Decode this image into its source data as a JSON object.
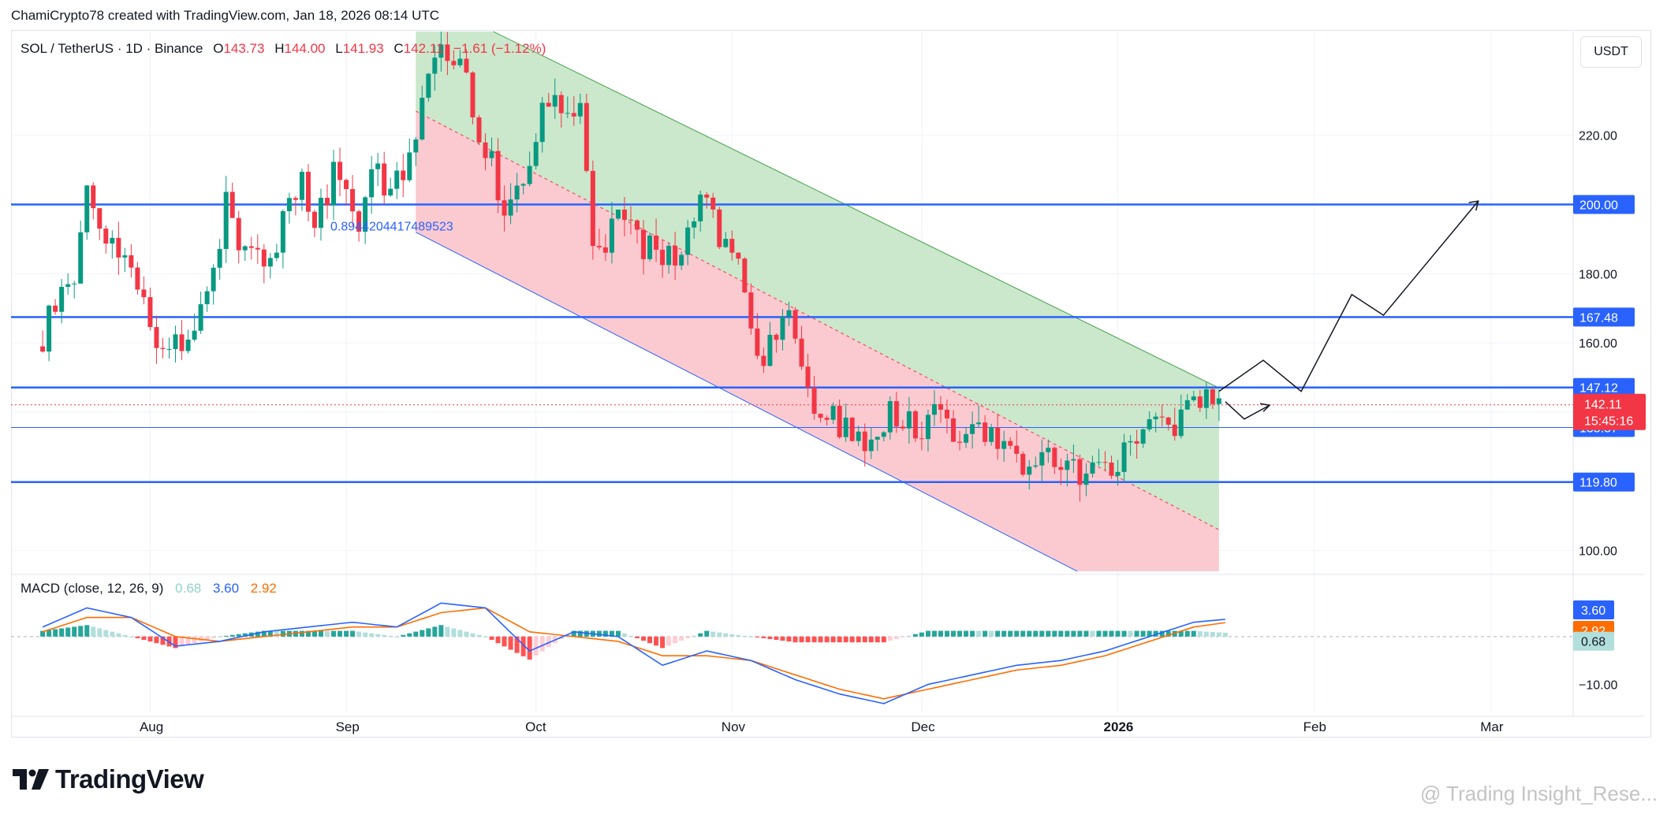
{
  "header": {
    "attribution": "ChamiCrypto78 created with TradingView.com, Jan 18, 2026 08:14 UTC"
  },
  "legend": {
    "symbol": "SOL / TetherUS · 1D · Binance",
    "open_label": "O",
    "open": "143.73",
    "high_label": "H",
    "high": "144.00",
    "low_label": "L",
    "low": "141.93",
    "close_label": "C",
    "close": "142.11",
    "change": "−1.61 (−1.12%)"
  },
  "currency_button": "USDT",
  "annotation_text": "0.8944204417489523",
  "macd_legend": {
    "label": "MACD (close, 12, 26, 9)",
    "hist": "0.68",
    "macd": "3.60",
    "signal": "2.92"
  },
  "footer": {
    "brand": "TradingView",
    "watermark": "@ Trading Insight_Rese..."
  },
  "colors": {
    "up": "#089981",
    "down": "#f23645",
    "level": "#2962ff",
    "channel_green": "#c8e6c9",
    "channel_red": "#fbc7cd",
    "macd": "#2962ff",
    "signal": "#ff6d00"
  },
  "chart_data": [
    {
      "type": "candlestick",
      "title": "SOL / TetherUS · 1D · Binance",
      "ylim": [
        94,
        250
      ],
      "y_ticks": [
        100,
        120,
        140,
        160,
        180,
        200,
        220
      ],
      "y_tick_labels": [
        "100.00",
        "",
        "",
        "160.00",
        "180.00",
        "",
        "220.00"
      ],
      "x_ticks": [
        "Aug",
        "Sep",
        "Oct",
        "Nov",
        "Dec",
        "2026",
        "Feb",
        "Mar"
      ],
      "x_tick_dates": [
        "2025-08-01",
        "2025-09-01",
        "2025-10-01",
        "2025-11-01",
        "2025-12-01",
        "2026-01-01",
        "2026-02-01",
        "2026-03-01"
      ],
      "horizontal_levels": [
        200.0,
        167.48,
        147.12,
        135.57,
        119.8
      ],
      "level_labels": [
        "200.00",
        "167.48",
        "147.12",
        "135.57",
        "119.80"
      ],
      "last_price": "142.11",
      "countdown": "15:45:16",
      "close_series": {
        "start_date": "2025-07-15",
        "end_date": "2026-01-18",
        "points": [
          [
            "2025-07-15",
            162
          ],
          [
            "2025-07-17",
            172
          ],
          [
            "2025-07-20",
            180
          ],
          [
            "2025-07-22",
            205
          ],
          [
            "2025-07-24",
            190
          ],
          [
            "2025-07-27",
            184
          ],
          [
            "2025-07-30",
            175
          ],
          [
            "2025-08-02",
            162
          ],
          [
            "2025-08-04",
            158
          ],
          [
            "2025-08-06",
            162
          ],
          [
            "2025-08-09",
            170
          ],
          [
            "2025-08-11",
            180
          ],
          [
            "2025-08-13",
            200
          ],
          [
            "2025-08-15",
            190
          ],
          [
            "2025-08-18",
            183
          ],
          [
            "2025-08-20",
            181
          ],
          [
            "2025-08-22",
            194
          ],
          [
            "2025-08-25",
            205
          ],
          [
            "2025-08-27",
            195
          ],
          [
            "2025-08-30",
            208
          ],
          [
            "2025-09-01",
            205
          ],
          [
            "2025-09-03",
            196
          ],
          [
            "2025-09-05",
            210
          ],
          [
            "2025-09-08",
            205
          ],
          [
            "2025-09-10",
            207
          ],
          [
            "2025-09-12",
            220
          ],
          [
            "2025-09-14",
            236
          ],
          [
            "2025-09-16",
            243
          ],
          [
            "2025-09-18",
            242
          ],
          [
            "2025-09-20",
            237
          ],
          [
            "2025-09-22",
            220
          ],
          [
            "2025-09-24",
            212
          ],
          [
            "2025-09-26",
            197
          ],
          [
            "2025-09-28",
            206
          ],
          [
            "2025-09-30",
            210
          ],
          [
            "2025-10-02",
            228
          ],
          [
            "2025-10-04",
            233
          ],
          [
            "2025-10-06",
            228
          ],
          [
            "2025-10-08",
            225
          ],
          [
            "2025-10-10",
            190
          ],
          [
            "2025-10-12",
            185
          ],
          [
            "2025-10-14",
            200
          ],
          [
            "2025-10-16",
            196
          ],
          [
            "2025-10-18",
            186
          ],
          [
            "2025-10-20",
            189
          ],
          [
            "2025-10-22",
            184
          ],
          [
            "2025-10-24",
            188
          ],
          [
            "2025-10-27",
            200
          ],
          [
            "2025-10-29",
            197
          ],
          [
            "2025-10-31",
            187
          ],
          [
            "2025-11-02",
            186
          ],
          [
            "2025-11-04",
            162
          ],
          [
            "2025-11-06",
            156
          ],
          [
            "2025-11-08",
            162
          ],
          [
            "2025-11-10",
            166
          ],
          [
            "2025-11-12",
            156
          ],
          [
            "2025-11-14",
            142
          ],
          [
            "2025-11-16",
            140
          ],
          [
            "2025-11-18",
            137
          ],
          [
            "2025-11-20",
            135
          ],
          [
            "2025-11-22",
            130
          ],
          [
            "2025-11-24",
            136
          ],
          [
            "2025-11-26",
            141
          ],
          [
            "2025-11-28",
            139
          ],
          [
            "2025-11-30",
            133
          ],
          [
            "2025-12-02",
            139
          ],
          [
            "2025-12-04",
            141
          ],
          [
            "2025-12-06",
            133
          ],
          [
            "2025-12-08",
            133
          ],
          [
            "2025-12-10",
            137
          ],
          [
            "2025-12-12",
            133
          ],
          [
            "2025-12-14",
            131
          ],
          [
            "2025-12-16",
            126
          ],
          [
            "2025-12-18",
            123
          ],
          [
            "2025-12-20",
            126
          ],
          [
            "2025-12-22",
            126
          ],
          [
            "2025-12-24",
            122
          ],
          [
            "2025-12-26",
            123
          ],
          [
            "2025-12-28",
            124
          ],
          [
            "2025-12-30",
            125
          ],
          [
            "2026-01-01",
            127
          ],
          [
            "2026-01-03",
            132
          ],
          [
            "2026-01-05",
            136
          ],
          [
            "2026-01-07",
            140
          ],
          [
            "2026-01-09",
            138
          ],
          [
            "2026-01-11",
            137
          ],
          [
            "2026-01-13",
            144
          ],
          [
            "2026-01-15",
            146
          ],
          [
            "2026-01-17",
            143.73
          ],
          [
            "2026-01-18",
            142.11
          ]
        ]
      },
      "channel": {
        "upper_start": [
          "2025-09-12",
          261
        ],
        "upper_end": [
          "2026-01-17",
          147
        ],
        "mid_start": [
          "2025-09-12",
          227
        ],
        "mid_end": [
          "2026-01-17",
          106
        ],
        "lower_start": [
          "2025-09-12",
          192
        ],
        "lower_end": [
          "2026-01-17",
          73
        ]
      },
      "projection_path": [
        [
          "2026-01-17",
          146
        ],
        [
          "2026-01-24",
          155
        ],
        [
          "2026-01-30",
          146
        ],
        [
          "2026-02-07",
          174
        ],
        [
          "2026-02-12",
          168
        ],
        [
          "2026-02-27",
          201
        ]
      ],
      "projection_path_alt": [
        [
          "2026-01-18",
          143
        ],
        [
          "2026-01-21",
          138
        ],
        [
          "2026-01-25",
          142
        ]
      ]
    },
    {
      "type": "macd",
      "title": "MACD (close, 12, 26, 9)",
      "ylim": [
        -16,
        12
      ],
      "y_ticks": [
        -10
      ],
      "y_tick_labels": [
        "−10.00"
      ],
      "last_values": {
        "macd": 3.6,
        "signal": 2.92,
        "hist": 0.68
      },
      "macd_points": [
        [
          "2025-07-15",
          2
        ],
        [
          "2025-07-22",
          6
        ],
        [
          "2025-07-29",
          4
        ],
        [
          "2025-08-05",
          -2
        ],
        [
          "2025-08-12",
          -1
        ],
        [
          "2025-08-19",
          1
        ],
        [
          "2025-08-26",
          2
        ],
        [
          "2025-09-02",
          3
        ],
        [
          "2025-09-09",
          2
        ],
        [
          "2025-09-16",
          7
        ],
        [
          "2025-09-23",
          6
        ],
        [
          "2025-09-30",
          -3
        ],
        [
          "2025-10-07",
          1
        ],
        [
          "2025-10-14",
          0
        ],
        [
          "2025-10-21",
          -6
        ],
        [
          "2025-10-28",
          -3
        ],
        [
          "2025-11-04",
          -5
        ],
        [
          "2025-11-11",
          -9
        ],
        [
          "2025-11-18",
          -12
        ],
        [
          "2025-11-25",
          -14
        ],
        [
          "2025-12-02",
          -10
        ],
        [
          "2025-12-09",
          -8
        ],
        [
          "2025-12-16",
          -6
        ],
        [
          "2025-12-23",
          -5
        ],
        [
          "2025-12-30",
          -3
        ],
        [
          "2026-01-06",
          0
        ],
        [
          "2026-01-13",
          3
        ],
        [
          "2026-01-18",
          3.6
        ]
      ],
      "signal_points": [
        [
          "2025-07-15",
          1
        ],
        [
          "2025-07-22",
          4
        ],
        [
          "2025-07-29",
          4
        ],
        [
          "2025-08-05",
          0
        ],
        [
          "2025-08-12",
          -1
        ],
        [
          "2025-08-19",
          0
        ],
        [
          "2025-08-26",
          1
        ],
        [
          "2025-09-02",
          2
        ],
        [
          "2025-09-09",
          2
        ],
        [
          "2025-09-16",
          5
        ],
        [
          "2025-09-23",
          6
        ],
        [
          "2025-09-30",
          1
        ],
        [
          "2025-10-07",
          0
        ],
        [
          "2025-10-14",
          -1
        ],
        [
          "2025-10-21",
          -4
        ],
        [
          "2025-10-28",
          -4
        ],
        [
          "2025-11-04",
          -5
        ],
        [
          "2025-11-11",
          -8
        ],
        [
          "2025-11-18",
          -11
        ],
        [
          "2025-11-25",
          -13
        ],
        [
          "2025-12-02",
          -11
        ],
        [
          "2025-12-09",
          -9
        ],
        [
          "2025-12-16",
          -7
        ],
        [
          "2025-12-23",
          -6
        ],
        [
          "2025-12-30",
          -4
        ],
        [
          "2026-01-06",
          -1
        ],
        [
          "2026-01-13",
          2
        ],
        [
          "2026-01-18",
          2.92
        ]
      ]
    }
  ]
}
